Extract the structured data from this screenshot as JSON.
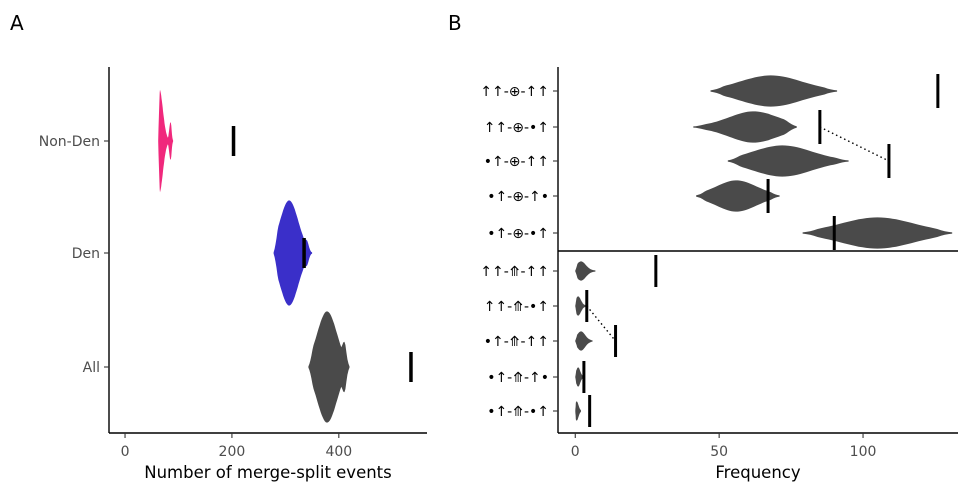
{
  "panels": [
    {
      "letter": "A",
      "type": "violin",
      "xlabel": "Number of merge-split events",
      "x_ticks": [
        0,
        200,
        400
      ],
      "xlim": [
        -30,
        565
      ],
      "categories": [
        {
          "label": "Non-Den",
          "color": "#f0287c",
          "center": 64,
          "lo": 62,
          "hi": 90,
          "bulge_at": 85,
          "bulge": 0.35,
          "observed": 203,
          "width": 0.9
        },
        {
          "label": "Den",
          "color": "#3a2fc9",
          "center": 307,
          "lo": 278,
          "hi": 350,
          "bulge_at": 338,
          "bulge": 0.25,
          "observed": 335,
          "width": 1.0
        },
        {
          "label": "All",
          "color": "#4a4a4a",
          "center": 378,
          "lo": 343,
          "hi": 420,
          "bulge_at": 410,
          "bulge": 0.45,
          "observed": 535,
          "width": 0.95
        }
      ]
    },
    {
      "letter": "B",
      "type": "violin",
      "xlabel": "Frequency",
      "x_ticks": [
        0,
        50,
        100
      ],
      "xlim": [
        -6,
        133
      ],
      "categories_upper": [
        {
          "label": "↑↑-⊕-↑↑",
          "color": "#4a4a4a",
          "center": 68,
          "lo": 47,
          "hi": 91,
          "observed": 126,
          "width": 0.85
        },
        {
          "label": "↑↑-⊕-•↑",
          "color": "#4a4a4a",
          "center": 62,
          "lo": 41,
          "hi": 77,
          "observed": 85,
          "width": 0.85
        },
        {
          "label": "•↑-⊕-↑↑",
          "color": "#4a4a4a",
          "center": 72,
          "lo": 53,
          "hi": 95,
          "observed": 109,
          "width": 0.85
        },
        {
          "label": "•↑-⊕-↑•",
          "color": "#4a4a4a",
          "center": 56,
          "lo": 42,
          "hi": 71,
          "observed": 67,
          "width": 0.85
        },
        {
          "label": "•↑-⊕-•↑",
          "color": "#4a4a4a",
          "center": 105,
          "lo": 79,
          "hi": 131,
          "observed": 90,
          "width": 0.85
        }
      ],
      "categories_lower": [
        {
          "label": "↑↑-⤊-↑↑",
          "color": "#4a4a4a",
          "center": 2,
          "lo": 0,
          "hi": 7,
          "observed": 28,
          "width": 0.85
        },
        {
          "label": "↑↑-⤊-•↑",
          "color": "#4a4a4a",
          "center": 1,
          "lo": 0,
          "hi": 4,
          "observed": 4,
          "width": 0.85
        },
        {
          "label": "•↑-⤊-↑↑",
          "color": "#4a4a4a",
          "center": 2,
          "lo": 0,
          "hi": 6,
          "observed": 14,
          "width": 0.85
        },
        {
          "label": "•↑-⤊-↑•",
          "color": "#4a4a4a",
          "center": 1,
          "lo": 0,
          "hi": 3,
          "observed": 3,
          "width": 0.85
        },
        {
          "label": "•↑-⤊-•↑",
          "color": "#4a4a4a",
          "center": 0.5,
          "lo": 0,
          "hi": 2,
          "observed": 5,
          "width": 0.85
        }
      ],
      "dotted_links": [
        {
          "group": "upper",
          "from": 1,
          "to": 2
        },
        {
          "group": "lower",
          "from": 1,
          "to": 2
        }
      ]
    }
  ],
  "chart_data": [
    {
      "type": "violin",
      "xlabel": "Number of merge-split events",
      "categories": [
        "Non-Den",
        "Den",
        "All"
      ],
      "series": [
        {
          "name": "Non-Den",
          "median": 64,
          "range": [
            62,
            90
          ],
          "observed": 203
        },
        {
          "name": "Den",
          "median": 307,
          "range": [
            278,
            350
          ],
          "observed": 335
        },
        {
          "name": "All",
          "median": 378,
          "range": [
            343,
            420
          ],
          "observed": 535
        }
      ],
      "xlim": [
        -30,
        565
      ]
    },
    {
      "type": "violin",
      "xlabel": "Frequency",
      "categories": [
        "↑↑-⊕-↑↑",
        "↑↑-⊕-•↑",
        "•↑-⊕-↑↑",
        "•↑-⊕-↑•",
        "•↑-⊕-•↑",
        "↑↑-⤊-↑↑",
        "↑↑-⤊-•↑",
        "•↑-⤊-↑↑",
        "•↑-⤊-↑•",
        "•↑-⤊-•↑"
      ],
      "series": [
        {
          "name": "↑↑-⊕-↑↑",
          "median": 68,
          "range": [
            47,
            91
          ],
          "observed": 126
        },
        {
          "name": "↑↑-⊕-•↑",
          "median": 62,
          "range": [
            41,
            77
          ],
          "observed": 85
        },
        {
          "name": "•↑-⊕-↑↑",
          "median": 72,
          "range": [
            53,
            95
          ],
          "observed": 109
        },
        {
          "name": "•↑-⊕-↑•",
          "median": 56,
          "range": [
            42,
            71
          ],
          "observed": 67
        },
        {
          "name": "•↑-⊕-•↑",
          "median": 105,
          "range": [
            79,
            131
          ],
          "observed": 90
        },
        {
          "name": "↑↑-⤊-↑↑",
          "median": 2,
          "range": [
            0,
            7
          ],
          "observed": 28
        },
        {
          "name": "↑↑-⤊-•↑",
          "median": 1,
          "range": [
            0,
            4
          ],
          "observed": 4
        },
        {
          "name": "•↑-⤊-↑↑",
          "median": 2,
          "range": [
            0,
            6
          ],
          "observed": 14
        },
        {
          "name": "•↑-⤊-↑•",
          "median": 1,
          "range": [
            0,
            3
          ],
          "observed": 3
        },
        {
          "name": "•↑-⤊-•↑",
          "median": 0.5,
          "range": [
            0,
            2
          ],
          "observed": 5
        }
      ],
      "xlim": [
        -6,
        133
      ]
    }
  ]
}
